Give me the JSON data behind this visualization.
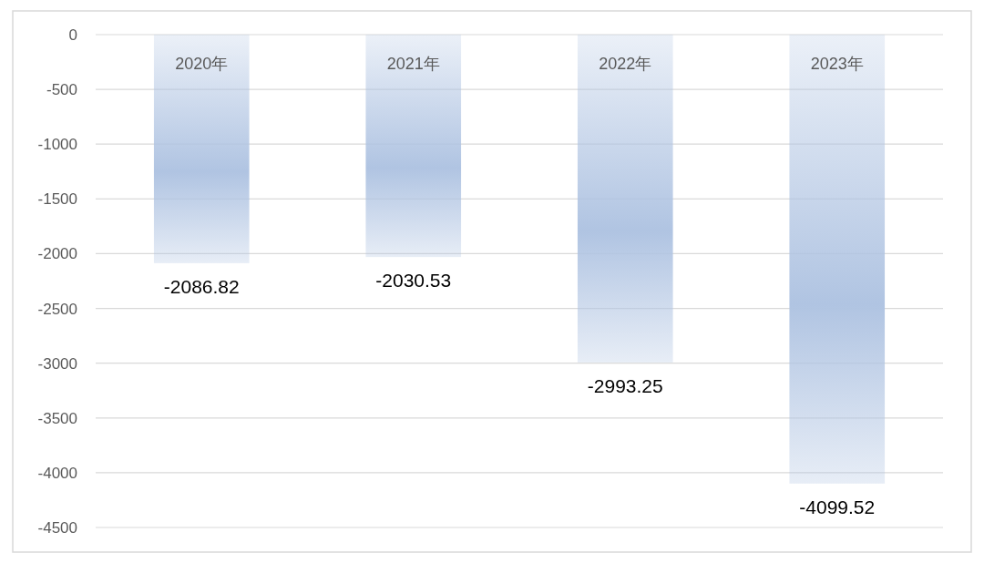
{
  "chart_data": {
    "type": "bar",
    "categories": [
      "2020年",
      "2021年",
      "2022年",
      "2023年"
    ],
    "values": [
      -2086.82,
      -2030.53,
      -2993.25,
      -4099.52
    ],
    "color": "#b0c4e2",
    "ylim": [
      -4500,
      0
    ],
    "yticks": [
      0,
      -500,
      -1000,
      -1500,
      -2000,
      -2500,
      -3000,
      -3500,
      -4000,
      -4500
    ],
    "grid": "y",
    "data_labels": true
  }
}
